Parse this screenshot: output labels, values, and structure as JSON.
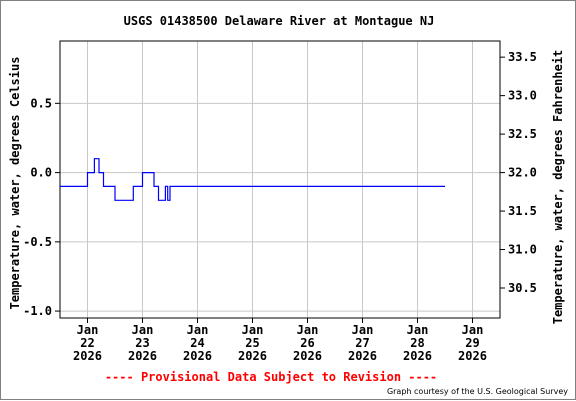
{
  "chart_data": {
    "type": "line",
    "title": "USGS 01438500 Delaware River at Montague NJ",
    "ylabel_left": "Temperature, water, degrees Celsius",
    "ylabel_right": "Temperature, water, degrees Fahrenheit",
    "provisional_notice": "---- Provisional Data Subject to Revision ----",
    "credit": "Graph courtesy of the U.S. Geological Survey",
    "xlim_days": [
      "2026-01-21 12:00",
      "2026-01-29 12:00"
    ],
    "ylim": [
      -1.05,
      0.95
    ],
    "grid": true,
    "left_ticks": [
      {
        "value": 0.5,
        "label": "0.5"
      },
      {
        "value": 0.0,
        "label": "0.0"
      },
      {
        "value": -0.5,
        "label": "-0.5"
      },
      {
        "value": -1.0,
        "label": "-1.0"
      }
    ],
    "right_ticks": [
      {
        "value": 33.5,
        "label": "33.5"
      },
      {
        "value": 33.0,
        "label": "33.0"
      },
      {
        "value": 32.5,
        "label": "32.5"
      },
      {
        "value": 32.0,
        "label": "32.0"
      },
      {
        "value": 31.5,
        "label": "31.5"
      },
      {
        "value": 31.0,
        "label": "31.0"
      },
      {
        "value": 30.5,
        "label": "30.5"
      }
    ],
    "x_ticks": [
      {
        "date": "2026-01-22",
        "month": "Jan",
        "day": "22",
        "year": "2026"
      },
      {
        "date": "2026-01-23",
        "month": "Jan",
        "day": "23",
        "year": "2026"
      },
      {
        "date": "2026-01-24",
        "month": "Jan",
        "day": "24",
        "year": "2026"
      },
      {
        "date": "2026-01-25",
        "month": "Jan",
        "day": "25",
        "year": "2026"
      },
      {
        "date": "2026-01-26",
        "month": "Jan",
        "day": "26",
        "year": "2026"
      },
      {
        "date": "2026-01-27",
        "month": "Jan",
        "day": "27",
        "year": "2026"
      },
      {
        "date": "2026-01-28",
        "month": "Jan",
        "day": "28",
        "year": "2026"
      },
      {
        "date": "2026-01-29",
        "month": "Jan",
        "day": "29",
        "year": "2026"
      }
    ],
    "series": [
      {
        "color": "#0000ff",
        "points": [
          [
            "2026-01-21 12:00",
            -0.1
          ],
          [
            "2026-01-21 23:00",
            -0.1
          ],
          [
            "2026-01-22 00:00",
            0.0
          ],
          [
            "2026-01-22 02:00",
            0.0
          ],
          [
            "2026-01-22 03:00",
            0.1
          ],
          [
            "2026-01-22 04:00",
            0.1
          ],
          [
            "2026-01-22 05:00",
            0.0
          ],
          [
            "2026-01-22 06:00",
            0.0
          ],
          [
            "2026-01-22 07:00",
            -0.1
          ],
          [
            "2026-01-22 11:00",
            -0.1
          ],
          [
            "2026-01-22 12:00",
            -0.2
          ],
          [
            "2026-01-22 19:00",
            -0.2
          ],
          [
            "2026-01-22 20:00",
            -0.1
          ],
          [
            "2026-01-22 23:00",
            -0.1
          ],
          [
            "2026-01-23 00:00",
            0.0
          ],
          [
            "2026-01-23 04:00",
            0.0
          ],
          [
            "2026-01-23 05:00",
            -0.1
          ],
          [
            "2026-01-23 06:00",
            -0.1
          ],
          [
            "2026-01-23 07:00",
            -0.2
          ],
          [
            "2026-01-23 09:00",
            -0.2
          ],
          [
            "2026-01-23 10:00",
            -0.1
          ],
          [
            "2026-01-23 11:00",
            -0.2
          ],
          [
            "2026-01-23 12:00",
            -0.1
          ],
          [
            "2026-01-28 12:00",
            -0.1
          ]
        ]
      }
    ]
  }
}
